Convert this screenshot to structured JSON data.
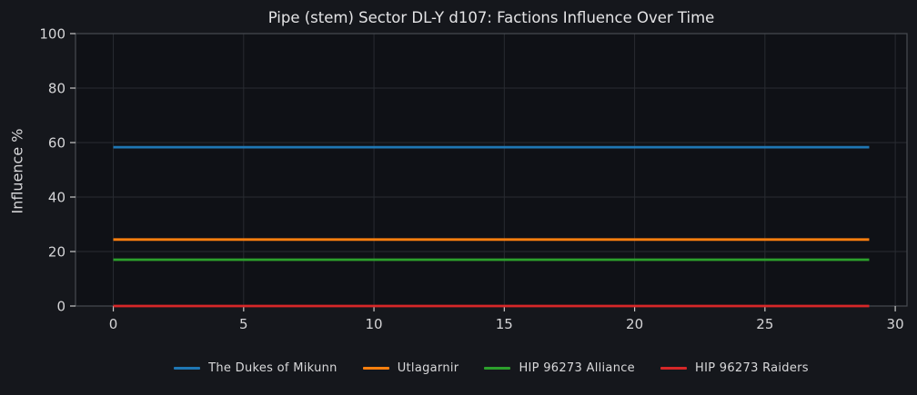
{
  "chart_data": {
    "type": "line",
    "title": "Pipe (stem) Sector DL-Y d107: Factions Influence Over Time",
    "xlabel": "",
    "ylabel": "Influence %",
    "xlim": [
      -1.45,
      30.45
    ],
    "ylim": [
      0,
      100
    ],
    "xticks": [
      0,
      5,
      10,
      15,
      20,
      25,
      30
    ],
    "yticks": [
      0,
      20,
      40,
      60,
      80,
      100
    ],
    "x_range": [
      0,
      29
    ],
    "grid": true,
    "legend_position": "bottom-center",
    "series": [
      {
        "name": "The Dukes of Mikunn",
        "color": "#1f77b4",
        "constant_value": 58.3
      },
      {
        "name": "Utlagarnir",
        "color": "#ff7f0e",
        "constant_value": 24.4
      },
      {
        "name": "HIP 96273 Alliance",
        "color": "#2ca02c",
        "constant_value": 17.0
      },
      {
        "name": "HIP 96273 Raiders",
        "color": "#d62728",
        "constant_value": 0.0
      }
    ]
  },
  "colors": {
    "figure_bg": "#15171c",
    "axes_bg": "#0f1116",
    "grid": "#282b31",
    "spine": "#484b51",
    "tick_mark": "#c8c8c8",
    "tick_label": "#d4d4d6",
    "title_text": "#e4e4e6"
  }
}
